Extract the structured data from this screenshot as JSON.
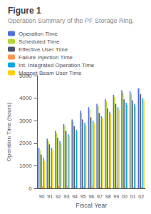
{
  "chart_data": {
    "type": "bar",
    "title": "Figure 1",
    "subtitle": "Operation Summary of the PF Storage Ring.",
    "x_label": "Fiscal Year",
    "y_label": "Operation Time (hours)",
    "categories": [
      "90",
      "91",
      "92",
      "93",
      "94",
      "95",
      "96",
      "97",
      "98",
      "99",
      "00",
      "01",
      "02"
    ],
    "series": [
      {
        "name": "Operation Time",
        "values": [
          1800,
          2200,
          2550,
          2850,
          3050,
          3450,
          3600,
          3750,
          3950,
          4150,
          4350,
          4300,
          4438
        ]
      },
      {
        "name": "Scheduled Time",
        "values": [
          1700,
          2100,
          2450,
          2750,
          2950,
          3350,
          3500,
          3650,
          3850,
          4050,
          4250,
          4200,
          4432
        ]
      },
      {
        "name": "Effective User Time",
        "values": [
          1500,
          1950,
          2250,
          2550,
          2750,
          3050,
          3150,
          3350,
          3550,
          3750,
          3950,
          3900,
          4176
        ]
      },
      {
        "name": "Failure Injection Time",
        "values": [
          80,
          90,
          100,
          90,
          85,
          80,
          70,
          65,
          60,
          55,
          50,
          55,
          67
        ]
      },
      {
        "name": "Int. Integrated Operation Time",
        "values": [
          1350,
          1800,
          2100,
          2400,
          2600,
          2900,
          3000,
          3200,
          3400,
          3600,
          3800,
          3750,
          4000
        ]
      },
      {
        "name": "Magnet Beam User Time",
        "values": [
          1200,
          1700,
          2000,
          2300,
          2500,
          2800,
          2900,
          3100,
          3300,
          3500,
          3700,
          3650,
          3900
        ]
      }
    ],
    "ylim": [
      0,
      5000
    ],
    "yticks": [
      0,
      1000,
      2000,
      3000,
      4000,
      5000
    ],
    "grid": false,
    "legend": "upper left"
  }
}
